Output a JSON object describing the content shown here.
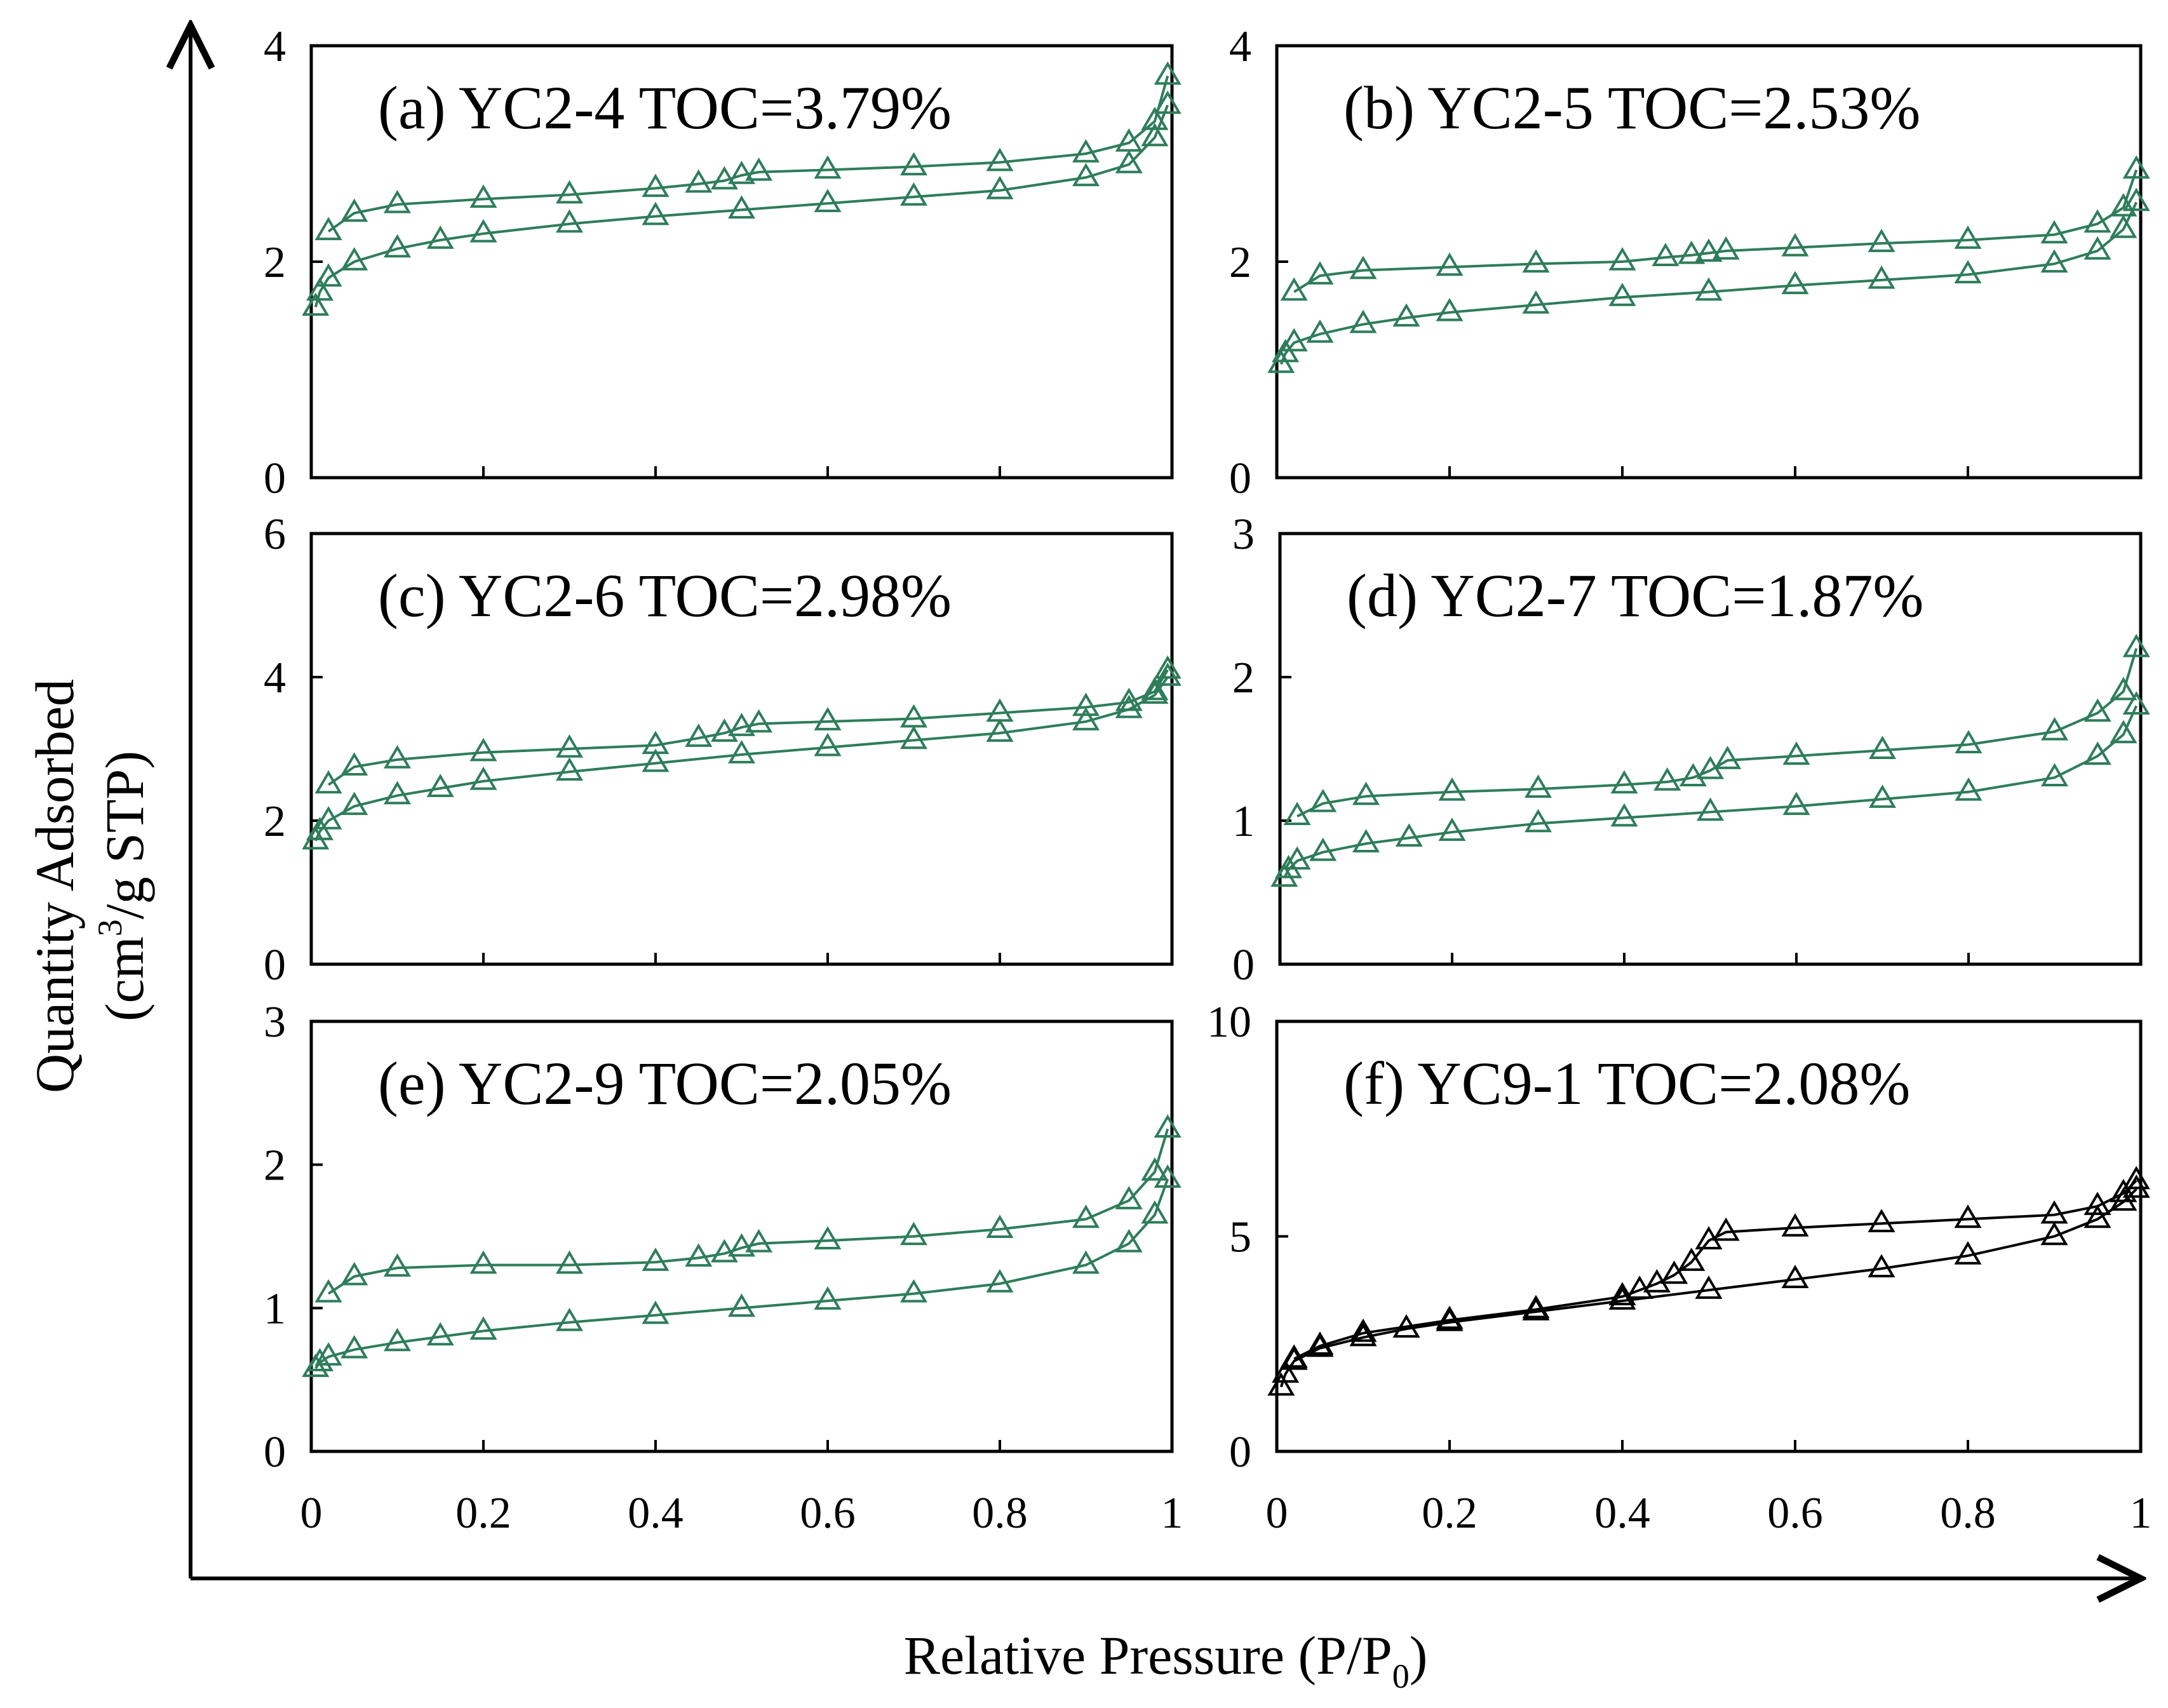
{
  "figure": {
    "x_axis_title": "Relative Pressure (P/P",
    "x_axis_title_sub": "0",
    "x_axis_title_end": ")",
    "y_axis_title_line1": "Quantity Adsorbed",
    "y_axis_title_line2_pre": "(cm",
    "y_axis_title_line2_sup": "3",
    "y_axis_title_line2_post": "/g STP)"
  },
  "colors": {
    "green": "#2e7d5b",
    "black": "#000000"
  },
  "chart_data": [
    {
      "type": "scatter",
      "title": "(a) YC2-4 TOC=3.79%",
      "xlim": [
        0,
        1
      ],
      "ylim": [
        0,
        4
      ],
      "x_ticks": [
        "0",
        "0.2",
        "0.4",
        "0.6",
        "0.8",
        "1"
      ],
      "y_ticks": [
        0,
        2,
        4
      ],
      "show_x_tick_labels": false,
      "marker": "triangle-open",
      "color": "#2e7d5b",
      "series": [
        {
          "branch": "adsorption",
          "x": [
            0.005,
            0.01,
            0.02,
            0.05,
            0.1,
            0.15,
            0.2,
            0.3,
            0.4,
            0.5,
            0.6,
            0.7,
            0.8,
            0.9,
            0.95,
            0.98,
            0.995
          ],
          "y": [
            1.58,
            1.72,
            1.85,
            2.0,
            2.12,
            2.2,
            2.26,
            2.35,
            2.42,
            2.48,
            2.54,
            2.6,
            2.66,
            2.78,
            2.9,
            3.15,
            3.45
          ]
        },
        {
          "branch": "desorption",
          "x": [
            0.995,
            0.98,
            0.95,
            0.9,
            0.8,
            0.7,
            0.6,
            0.52,
            0.5,
            0.48,
            0.45,
            0.4,
            0.3,
            0.2,
            0.1,
            0.05,
            0.02
          ],
          "y": [
            3.72,
            3.3,
            3.1,
            3.0,
            2.92,
            2.88,
            2.85,
            2.83,
            2.8,
            2.75,
            2.72,
            2.68,
            2.62,
            2.58,
            2.53,
            2.45,
            2.28
          ]
        }
      ]
    },
    {
      "type": "scatter",
      "title": "(b) YC2-5 TOC=2.53%",
      "xlim": [
        0,
        1
      ],
      "ylim": [
        0,
        4
      ],
      "x_ticks": [
        "0",
        "0.2",
        "0.4",
        "0.6",
        "0.8",
        "1"
      ],
      "y_ticks": [
        0,
        2,
        4
      ],
      "show_x_tick_labels": false,
      "marker": "triangle-open",
      "color": "#2e7d5b",
      "series": [
        {
          "branch": "adsorption",
          "x": [
            0.005,
            0.01,
            0.02,
            0.05,
            0.1,
            0.15,
            0.2,
            0.3,
            0.4,
            0.5,
            0.6,
            0.7,
            0.8,
            0.9,
            0.95,
            0.98,
            0.995
          ],
          "y": [
            1.05,
            1.15,
            1.25,
            1.33,
            1.42,
            1.48,
            1.53,
            1.6,
            1.67,
            1.72,
            1.78,
            1.83,
            1.88,
            1.98,
            2.1,
            2.3,
            2.55
          ]
        },
        {
          "branch": "desorption",
          "x": [
            0.995,
            0.98,
            0.95,
            0.9,
            0.8,
            0.7,
            0.6,
            0.52,
            0.5,
            0.48,
            0.45,
            0.4,
            0.3,
            0.2,
            0.1,
            0.05,
            0.02
          ],
          "y": [
            2.85,
            2.5,
            2.35,
            2.25,
            2.2,
            2.17,
            2.13,
            2.1,
            2.08,
            2.06,
            2.04,
            2.0,
            1.98,
            1.95,
            1.92,
            1.87,
            1.72
          ]
        }
      ]
    },
    {
      "type": "scatter",
      "title": "(c) YC2-6 TOC=2.98%",
      "xlim": [
        0,
        1
      ],
      "ylim": [
        0,
        6
      ],
      "x_ticks": [
        "0",
        "0.2",
        "0.4",
        "0.6",
        "0.8",
        "1"
      ],
      "y_ticks": [
        0,
        2,
        4,
        6
      ],
      "show_x_tick_labels": false,
      "marker": "triangle-open",
      "color": "#2e7d5b",
      "series": [
        {
          "branch": "adsorption",
          "x": [
            0.005,
            0.01,
            0.02,
            0.05,
            0.1,
            0.15,
            0.2,
            0.3,
            0.4,
            0.5,
            0.6,
            0.7,
            0.8,
            0.9,
            0.95,
            0.98,
            0.995
          ],
          "y": [
            1.72,
            1.85,
            2.0,
            2.2,
            2.35,
            2.45,
            2.55,
            2.68,
            2.8,
            2.92,
            3.02,
            3.12,
            3.22,
            3.38,
            3.55,
            3.75,
            4.0
          ]
        },
        {
          "branch": "desorption",
          "x": [
            0.995,
            0.98,
            0.95,
            0.9,
            0.8,
            0.7,
            0.6,
            0.52,
            0.5,
            0.48,
            0.45,
            0.4,
            0.3,
            0.2,
            0.1,
            0.05,
            0.02
          ],
          "y": [
            4.1,
            3.8,
            3.65,
            3.58,
            3.5,
            3.42,
            3.38,
            3.35,
            3.3,
            3.22,
            3.15,
            3.05,
            3.0,
            2.95,
            2.85,
            2.75,
            2.5
          ]
        }
      ]
    },
    {
      "type": "scatter",
      "title": "(d) YC2-7 TOC=1.87%",
      "xlim": [
        0,
        1
      ],
      "ylim": [
        0,
        3
      ],
      "x_ticks": [
        "0",
        "0.2",
        "0.4",
        "0.6",
        "0.8",
        "1"
      ],
      "y_ticks": [
        0,
        1,
        2,
        3
      ],
      "show_x_tick_labels": false,
      "marker": "triangle-open",
      "color": "#2e7d5b",
      "series": [
        {
          "branch": "adsorption",
          "x": [
            0.005,
            0.01,
            0.02,
            0.05,
            0.1,
            0.15,
            0.2,
            0.3,
            0.4,
            0.5,
            0.6,
            0.7,
            0.8,
            0.9,
            0.95,
            0.98,
            0.995
          ],
          "y": [
            0.6,
            0.66,
            0.72,
            0.78,
            0.84,
            0.88,
            0.92,
            0.98,
            1.02,
            1.06,
            1.1,
            1.15,
            1.2,
            1.3,
            1.45,
            1.6,
            1.8
          ]
        },
        {
          "branch": "desorption",
          "x": [
            0.995,
            0.98,
            0.95,
            0.9,
            0.8,
            0.7,
            0.6,
            0.52,
            0.5,
            0.48,
            0.45,
            0.4,
            0.3,
            0.2,
            0.1,
            0.05,
            0.02
          ],
          "y": [
            2.2,
            1.9,
            1.75,
            1.62,
            1.53,
            1.49,
            1.45,
            1.42,
            1.35,
            1.3,
            1.27,
            1.25,
            1.22,
            1.2,
            1.17,
            1.12,
            1.03
          ]
        }
      ]
    },
    {
      "type": "scatter",
      "title": "(e) YC2-9 TOC=2.05%",
      "xlim": [
        0,
        1
      ],
      "ylim": [
        0,
        3
      ],
      "x_ticks": [
        "0",
        "0.2",
        "0.4",
        "0.6",
        "0.8",
        "1"
      ],
      "y_ticks": [
        0,
        1,
        2,
        3
      ],
      "show_x_tick_labels": true,
      "marker": "triangle-open",
      "color": "#2e7d5b",
      "series": [
        {
          "branch": "adsorption",
          "x": [
            0.005,
            0.01,
            0.02,
            0.05,
            0.1,
            0.15,
            0.2,
            0.3,
            0.4,
            0.5,
            0.6,
            0.7,
            0.8,
            0.9,
            0.95,
            0.98,
            0.995
          ],
          "y": [
            0.58,
            0.62,
            0.66,
            0.71,
            0.76,
            0.8,
            0.84,
            0.9,
            0.95,
            1.0,
            1.05,
            1.1,
            1.17,
            1.3,
            1.45,
            1.65,
            1.9
          ]
        },
        {
          "branch": "desorption",
          "x": [
            0.995,
            0.98,
            0.95,
            0.9,
            0.8,
            0.7,
            0.6,
            0.52,
            0.5,
            0.48,
            0.45,
            0.4,
            0.3,
            0.2,
            0.1,
            0.05,
            0.02
          ],
          "y": [
            2.25,
            1.95,
            1.75,
            1.62,
            1.55,
            1.5,
            1.47,
            1.45,
            1.42,
            1.38,
            1.35,
            1.32,
            1.3,
            1.3,
            1.28,
            1.22,
            1.1
          ]
        }
      ]
    },
    {
      "type": "scatter",
      "title": "(f) YC9-1 TOC=2.08%",
      "xlim": [
        0,
        1
      ],
      "ylim": [
        0,
        10
      ],
      "x_ticks": [
        "0",
        "0.2",
        "0.4",
        "0.6",
        "0.8",
        "1"
      ],
      "y_ticks": [
        0,
        5,
        10
      ],
      "show_x_tick_labels": true,
      "marker": "triangle-open",
      "color": "#000000",
      "series": [
        {
          "branch": "adsorption",
          "x": [
            0.005,
            0.01,
            0.02,
            0.05,
            0.1,
            0.15,
            0.2,
            0.3,
            0.4,
            0.5,
            0.6,
            0.7,
            0.8,
            0.9,
            0.95,
            0.98,
            0.995
          ],
          "y": [
            1.5,
            1.8,
            2.1,
            2.4,
            2.65,
            2.85,
            3.0,
            3.25,
            3.5,
            3.75,
            4.0,
            4.25,
            4.55,
            5.0,
            5.4,
            5.8,
            6.1
          ]
        },
        {
          "branch": "desorption",
          "x": [
            0.995,
            0.98,
            0.95,
            0.9,
            0.8,
            0.7,
            0.6,
            0.52,
            0.5,
            0.48,
            0.46,
            0.44,
            0.42,
            0.4,
            0.3,
            0.2,
            0.1,
            0.05,
            0.02
          ],
          "y": [
            6.3,
            6.0,
            5.7,
            5.5,
            5.4,
            5.3,
            5.2,
            5.1,
            4.9,
            4.4,
            4.1,
            3.9,
            3.75,
            3.6,
            3.3,
            3.05,
            2.75,
            2.45,
            2.15
          ]
        }
      ]
    }
  ]
}
